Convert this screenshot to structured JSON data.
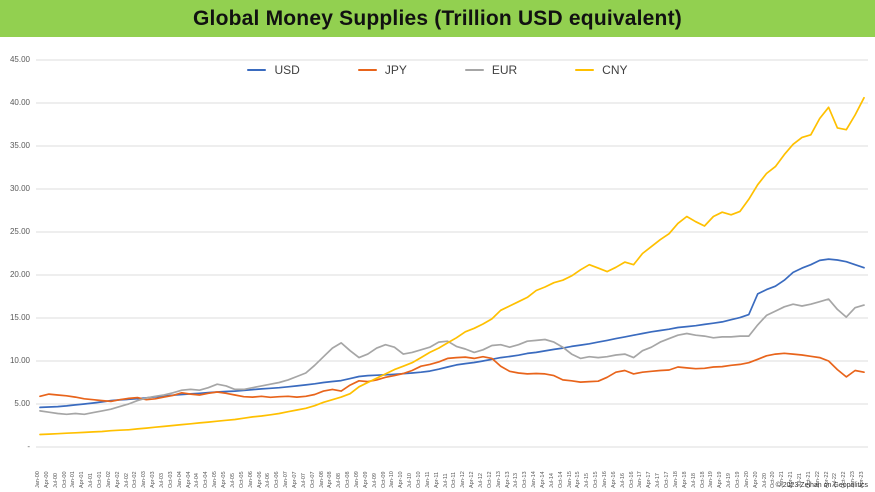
{
  "header": {
    "title": "Global Money Supplies (Trillion USD equivalent)"
  },
  "footer": {
    "copyright": "© 2023 Zeihan on Geopolitics"
  },
  "colors": {
    "banner": "#92d050",
    "grid": "#dcdcdc"
  },
  "chart_data": {
    "type": "line",
    "title": "Global Money Supplies (Trillion USD equivalent)",
    "xlabel": "",
    "ylabel": "",
    "ylim": [
      0,
      45
    ],
    "grid": "on",
    "legend_position": "top",
    "y_ticks": [
      {
        "label": "45.00",
        "value": 45
      },
      {
        "label": "40.00",
        "value": 40
      },
      {
        "label": "35.00",
        "value": 35
      },
      {
        "label": "30.00",
        "value": 30
      },
      {
        "label": "25.00",
        "value": 25
      },
      {
        "label": "20.00",
        "value": 20
      },
      {
        "label": "15.00",
        "value": 15
      },
      {
        "label": "10.00",
        "value": 10
      },
      {
        "label": "5.00",
        "value": 5
      },
      {
        "label": "-",
        "value": 0
      }
    ],
    "categories": [
      "Jan-00",
      "Apr-00",
      "Jul-00",
      "Oct-00",
      "Jan-01",
      "Apr-01",
      "Jul-01",
      "Oct-01",
      "Jan-02",
      "Apr-02",
      "Jul-02",
      "Oct-02",
      "Jan-03",
      "Apr-03",
      "Jul-03",
      "Oct-03",
      "Jan-04",
      "Apr-04",
      "Jul-04",
      "Oct-04",
      "Jan-05",
      "Apr-05",
      "Jul-05",
      "Oct-05",
      "Jan-06",
      "Apr-06",
      "Jul-06",
      "Oct-06",
      "Jan-07",
      "Apr-07",
      "Jul-07",
      "Oct-07",
      "Jan-08",
      "Apr-08",
      "Jul-08",
      "Oct-08",
      "Jan-09",
      "Apr-09",
      "Jul-09",
      "Oct-09",
      "Jan-10",
      "Apr-10",
      "Jul-10",
      "Oct-10",
      "Jan-11",
      "Apr-11",
      "Jul-11",
      "Oct-11",
      "Jan-12",
      "Apr-12",
      "Jul-12",
      "Oct-12",
      "Jan-13",
      "Apr-13",
      "Jul-13",
      "Oct-13",
      "Jan-14",
      "Apr-14",
      "Jul-14",
      "Oct-14",
      "Jan-15",
      "Apr-15",
      "Jul-15",
      "Oct-15",
      "Jan-16",
      "Apr-16",
      "Jul-16",
      "Oct-16",
      "Jan-17",
      "Apr-17",
      "Jul-17",
      "Oct-17",
      "Jan-18",
      "Apr-18",
      "Jul-18",
      "Oct-18",
      "Jan-19",
      "Apr-19",
      "Jul-19",
      "Oct-19",
      "Jan-20",
      "Apr-20",
      "Jul-20",
      "Oct-20",
      "Jan-21",
      "Apr-21",
      "Jul-21",
      "Oct-21",
      "Jan-22",
      "Apr-22",
      "Jul-22",
      "Oct-22",
      "Jan-23",
      "Apr-23"
    ],
    "series": [
      {
        "name": "USD",
        "color": "#3a6bbf",
        "values": [
          4.6,
          4.65,
          4.7,
          4.78,
          4.9,
          5.0,
          5.12,
          5.25,
          5.4,
          5.48,
          5.55,
          5.62,
          5.72,
          5.82,
          5.92,
          6.02,
          6.1,
          6.18,
          6.25,
          6.32,
          6.4,
          6.45,
          6.5,
          6.58,
          6.68,
          6.75,
          6.82,
          6.9,
          7.0,
          7.1,
          7.22,
          7.35,
          7.5,
          7.62,
          7.72,
          7.95,
          8.2,
          8.3,
          8.35,
          8.4,
          8.45,
          8.52,
          8.6,
          8.7,
          8.82,
          9.05,
          9.3,
          9.55,
          9.7,
          9.82,
          10.0,
          10.2,
          10.4,
          10.52,
          10.68,
          10.88,
          11.0,
          11.18,
          11.35,
          11.5,
          11.7,
          11.85,
          12.0,
          12.2,
          12.4,
          12.6,
          12.8,
          13.0,
          13.2,
          13.4,
          13.55,
          13.7,
          13.9,
          14.0,
          14.1,
          14.25,
          14.4,
          14.55,
          14.8,
          15.05,
          15.4,
          17.8,
          18.3,
          18.7,
          19.4,
          20.3,
          20.8,
          21.2,
          21.7,
          21.85,
          21.75,
          21.55,
          21.2,
          20.85
        ]
      },
      {
        "name": "JPY",
        "color": "#e8641b",
        "values": [
          5.9,
          6.15,
          6.05,
          5.95,
          5.8,
          5.6,
          5.5,
          5.4,
          5.3,
          5.5,
          5.65,
          5.75,
          5.5,
          5.6,
          5.8,
          6.0,
          6.3,
          6.15,
          6.05,
          6.25,
          6.4,
          6.25,
          6.05,
          5.85,
          5.8,
          5.9,
          5.78,
          5.85,
          5.9,
          5.8,
          5.9,
          6.1,
          6.5,
          6.7,
          6.5,
          7.2,
          7.7,
          7.6,
          7.8,
          8.1,
          8.3,
          8.55,
          8.9,
          9.4,
          9.6,
          9.9,
          10.3,
          10.4,
          10.45,
          10.3,
          10.5,
          10.3,
          9.4,
          8.8,
          8.6,
          8.5,
          8.55,
          8.5,
          8.3,
          7.8,
          7.7,
          7.55,
          7.6,
          7.65,
          8.1,
          8.7,
          8.9,
          8.5,
          8.7,
          8.8,
          8.9,
          8.95,
          9.3,
          9.2,
          9.1,
          9.15,
          9.3,
          9.35,
          9.5,
          9.6,
          9.8,
          10.2,
          10.6,
          10.8,
          10.9,
          10.8,
          10.7,
          10.55,
          10.4,
          10.0,
          9.0,
          8.15,
          8.9,
          8.7
        ]
      },
      {
        "name": "EUR",
        "color": "#a6a6a6",
        "values": [
          4.2,
          4.05,
          3.9,
          3.8,
          3.9,
          3.8,
          4.0,
          4.2,
          4.4,
          4.7,
          5.0,
          5.4,
          5.7,
          5.9,
          6.05,
          6.3,
          6.6,
          6.7,
          6.6,
          6.9,
          7.3,
          7.1,
          6.7,
          6.7,
          6.9,
          7.1,
          7.3,
          7.5,
          7.8,
          8.2,
          8.6,
          9.5,
          10.5,
          11.5,
          12.1,
          11.2,
          10.4,
          10.8,
          11.5,
          11.9,
          11.6,
          10.8,
          11.0,
          11.3,
          11.6,
          12.2,
          12.3,
          11.7,
          11.4,
          11.0,
          11.3,
          11.8,
          11.9,
          11.6,
          11.9,
          12.3,
          12.4,
          12.5,
          12.2,
          11.6,
          10.8,
          10.3,
          10.5,
          10.4,
          10.5,
          10.7,
          10.8,
          10.4,
          11.2,
          11.6,
          12.2,
          12.6,
          13.0,
          13.2,
          13.0,
          12.9,
          12.7,
          12.8,
          12.8,
          12.9,
          12.9,
          14.2,
          15.3,
          15.8,
          16.3,
          16.6,
          16.4,
          16.6,
          16.9,
          17.2,
          16.0,
          15.1,
          16.2,
          16.5
        ]
      },
      {
        "name": "CNY",
        "color": "#ffc000",
        "values": [
          1.45,
          1.5,
          1.55,
          1.6,
          1.65,
          1.7,
          1.75,
          1.8,
          1.9,
          1.95,
          2.0,
          2.1,
          2.2,
          2.3,
          2.4,
          2.5,
          2.6,
          2.7,
          2.8,
          2.9,
          3.0,
          3.1,
          3.2,
          3.35,
          3.5,
          3.6,
          3.75,
          3.9,
          4.1,
          4.3,
          4.5,
          4.8,
          5.2,
          5.5,
          5.8,
          6.2,
          7.0,
          7.5,
          8.0,
          8.5,
          9.0,
          9.4,
          9.8,
          10.4,
          11.0,
          11.5,
          12.1,
          12.7,
          13.4,
          13.8,
          14.3,
          14.9,
          15.9,
          16.4,
          16.9,
          17.4,
          18.2,
          18.6,
          19.1,
          19.4,
          19.9,
          20.6,
          21.2,
          20.8,
          20.4,
          20.9,
          21.5,
          21.2,
          22.5,
          23.3,
          24.1,
          24.8,
          26.0,
          26.8,
          26.2,
          25.7,
          26.8,
          27.3,
          27.0,
          27.4,
          28.8,
          30.5,
          31.8,
          32.6,
          34.0,
          35.2,
          36.0,
          36.3,
          38.2,
          39.5,
          37.1,
          36.9,
          38.6,
          40.6
        ]
      }
    ]
  }
}
